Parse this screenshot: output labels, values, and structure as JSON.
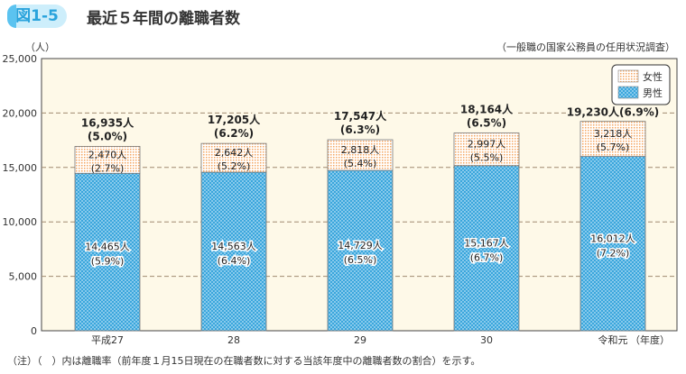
{
  "header": {
    "badge": "図1-5",
    "title": "最近５年間の離職者数",
    "unit": "（人）",
    "source": "（一般職の国家公務員の任用状況調査）",
    "note": "（注）（　）内は離職率（前年度１月15日現在の在職者数に対する当該年度中の離職者数の割合）を示す。"
  },
  "chart_data": {
    "type": "bar",
    "stacked": true,
    "title": "最近５年間の離職者数",
    "ylabel": "（人）",
    "xlabel": "（年度）",
    "ylim": [
      0,
      25000
    ],
    "yticks": [
      0,
      5000,
      10000,
      15000,
      20000,
      25000
    ],
    "ytick_labels": [
      "0",
      "5,000",
      "10,000",
      "15,000",
      "20,000",
      "25,000"
    ],
    "categories": [
      "平成27",
      "28",
      "29",
      "30",
      "令和元"
    ],
    "legend": "top-right",
    "series": [
      {
        "name": "男性",
        "values": [
          14465,
          14563,
          14729,
          15167,
          16012
        ],
        "labels": [
          "14,465人",
          "14,563人",
          "14,729人",
          "15,167人",
          "16,012人"
        ],
        "rates": [
          "(5.9%)",
          "(6.4%)",
          "(6.5%)",
          "(6.7%)",
          "(7.2%)"
        ],
        "color": "#3aa6dc"
      },
      {
        "name": "女性",
        "values": [
          2470,
          2642,
          2818,
          2997,
          3218
        ],
        "labels": [
          "2,470人",
          "2,642人",
          "2,818人",
          "2,997人",
          "3,218人"
        ],
        "rates": [
          "(2.7%)",
          "(5.2%)",
          "(5.4%)",
          "(5.5%)",
          "(5.7%)"
        ],
        "color": "#f3a25a"
      }
    ],
    "totals": {
      "values": [
        16935,
        17205,
        17547,
        18164,
        19230
      ],
      "labels": [
        "16,935人",
        "17,205人",
        "17,547人",
        "18,164人",
        "19,230人"
      ],
      "rates": [
        "(5.0%)",
        "(6.2%)",
        "(6.3%)",
        "(6.5%)",
        "(6.9%)"
      ]
    },
    "colors": {
      "plot_bg": "#fef9e8",
      "grid": "#a08a70"
    }
  }
}
